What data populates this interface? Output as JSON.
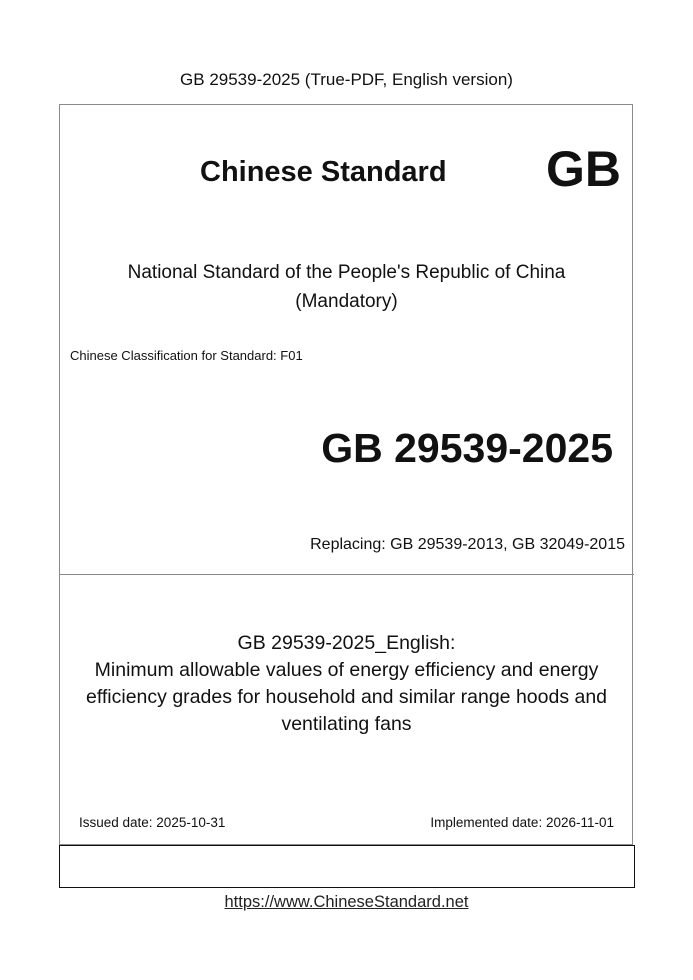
{
  "header": {
    "title": "GB 29539-2025 (True-PDF, English version)"
  },
  "cover": {
    "heading": "Chinese Standard",
    "logo": "GB",
    "national_line1": "National Standard of the People's Republic of China",
    "national_line2": "(Mandatory)",
    "classification": "Chinese Classification for Standard: F01",
    "standard_number": "GB 29539-2025",
    "replacing": "Replacing: GB 29539-2013, GB 32049-2015",
    "title_line1": "GB 29539-2025_English:",
    "title_line2": "Minimum allowable values of energy efficiency and energy",
    "title_line3": "efficiency grades for household and similar range hoods and",
    "title_line4": "ventilating fans",
    "issued_date": "Issued date: 2025-10-31",
    "implemented_date": "Implemented date: 2026-11-01"
  },
  "footer": {
    "url": "https://www.ChineseStandard.net"
  }
}
